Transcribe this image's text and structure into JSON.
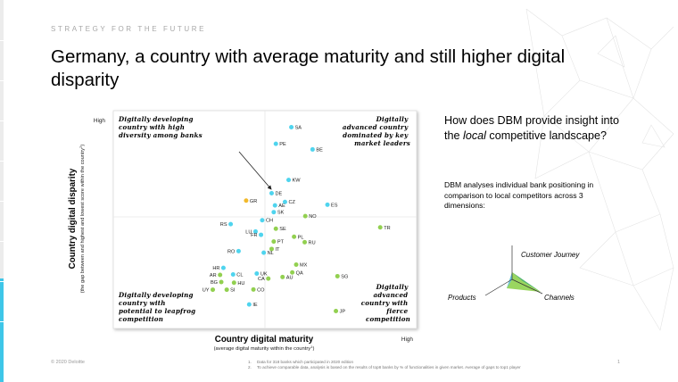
{
  "slide": {
    "eyebrow": "STRATEGY FOR THE FUTURE",
    "title": "Germany, a country with average maturity and still higher digital disparity",
    "copyright": "© 2020 Deloitte",
    "page_number": "1",
    "footnotes": [
      {
        "num": "1.",
        "text": "Data for 318 banks which participated in 2020 edition"
      },
      {
        "num": "2.",
        "text": "To achieve comparable data, analysis is based on the results of top8 banks by % of functionalities in given market. Average of gaps to top1 player"
      }
    ],
    "colors": {
      "accent": "#3ec6e8",
      "cyan_point": "#4fd4ee",
      "green_point": "#92d050",
      "highlight_point": "#f2b92b"
    }
  },
  "side_panel": {
    "question": "How does DBM provide insight into the ",
    "question_local": "local",
    "question_end": " competitive landscape?",
    "answer": "DBM analyses individual bank positioning in comparison to local competitors across 3 dimensions:",
    "diagram_labels": {
      "customer_journey": "Customer Journey",
      "products": "Products",
      "channels": "Channels"
    }
  },
  "chart_data": {
    "type": "scatter",
    "xlabel": "Country digital maturity",
    "xlabel_sub": "(average  digital maturity within the country",
    "xlabel_sup": "1",
    "xlabel_end": ")",
    "ylabel": "Country digital disparity",
    "ylabel_sub": "(the gap between and highest and lowest score within the country",
    "ylabel_sup": "2",
    "ylabel_end": ")",
    "x_high_label": "High",
    "y_high_label": "High",
    "xlim": [
      0,
      100
    ],
    "ylim": [
      0,
      100
    ],
    "quadrants": {
      "top_left": [
        "Digitally developing",
        "country with high",
        "diversity among banks"
      ],
      "top_right": [
        "Digitally",
        "advanced country",
        "dominated by key",
        "market leaders"
      ],
      "bottom_left": [
        "Digitally developing",
        "country with",
        "potential to leapfrog",
        "competition"
      ],
      "bottom_right": [
        "Digitally",
        "advanced",
        "country with",
        "fierce",
        "competition"
      ]
    },
    "points": [
      {
        "label": "SA",
        "x": 58.7,
        "y": 92.4,
        "group": "cyan"
      },
      {
        "label": "PE",
        "x": 53.6,
        "y": 84.8,
        "group": "cyan"
      },
      {
        "label": "BE",
        "x": 65.7,
        "y": 82.2,
        "group": "cyan"
      },
      {
        "label": "KW",
        "x": 57.8,
        "y": 68.2,
        "group": "cyan"
      },
      {
        "label": "DE",
        "x": 52.2,
        "y": 62.1,
        "group": "cyan"
      },
      {
        "label": "GR",
        "x": 43.8,
        "y": 58.7,
        "group": "yellow"
      },
      {
        "label": "CZ",
        "x": 56.6,
        "y": 58.1,
        "group": "cyan"
      },
      {
        "label": "AE",
        "x": 53.3,
        "y": 56.5,
        "group": "cyan"
      },
      {
        "label": "ES",
        "x": 70.6,
        "y": 56.8,
        "group": "cyan"
      },
      {
        "label": "SK",
        "x": 52.9,
        "y": 53.4,
        "group": "cyan"
      },
      {
        "label": "NO",
        "x": 63.3,
        "y": 51.6,
        "group": "green"
      },
      {
        "label": "CH",
        "x": 49.1,
        "y": 49.7,
        "group": "cyan"
      },
      {
        "label": "RS",
        "x": 38.7,
        "y": 47.9,
        "group": "cyan"
      },
      {
        "label": "TR",
        "x": 88.0,
        "y": 46.4,
        "group": "green"
      },
      {
        "label": "LU",
        "x": 46.9,
        "y": 44.5,
        "group": "cyan"
      },
      {
        "label": "SE",
        "x": 53.6,
        "y": 45.8,
        "group": "green"
      },
      {
        "label": "FR",
        "x": 48.7,
        "y": 43.0,
        "group": "cyan"
      },
      {
        "label": "PL",
        "x": 59.6,
        "y": 42.1,
        "group": "green"
      },
      {
        "label": "PT",
        "x": 52.9,
        "y": 39.9,
        "group": "green"
      },
      {
        "label": "RU",
        "x": 63.1,
        "y": 39.6,
        "group": "green"
      },
      {
        "label": "IT",
        "x": 52.2,
        "y": 36.5,
        "group": "green"
      },
      {
        "label": "RO",
        "x": 41.3,
        "y": 35.5,
        "group": "cyan"
      },
      {
        "label": "NL",
        "x": 49.6,
        "y": 34.8,
        "group": "cyan"
      },
      {
        "label": "HR",
        "x": 36.3,
        "y": 27.8,
        "group": "cyan"
      },
      {
        "label": "MX",
        "x": 60.3,
        "y": 29.3,
        "group": "green"
      },
      {
        "label": "AR",
        "x": 35.2,
        "y": 24.6,
        "group": "green"
      },
      {
        "label": "CL",
        "x": 39.5,
        "y": 24.8,
        "group": "cyan"
      },
      {
        "label": "UK",
        "x": 47.3,
        "y": 25.2,
        "group": "cyan"
      },
      {
        "label": "QA",
        "x": 59.0,
        "y": 25.7,
        "group": "green"
      },
      {
        "label": "SG",
        "x": 73.9,
        "y": 24.0,
        "group": "green"
      },
      {
        "label": "AU",
        "x": 55.8,
        "y": 23.6,
        "group": "green"
      },
      {
        "label": "CA",
        "x": 51.1,
        "y": 22.9,
        "group": "green"
      },
      {
        "label": "BG",
        "x": 35.6,
        "y": 21.3,
        "group": "green"
      },
      {
        "label": "HU",
        "x": 39.8,
        "y": 21.0,
        "group": "green"
      },
      {
        "label": "UY",
        "x": 32.8,
        "y": 17.8,
        "group": "green"
      },
      {
        "label": "SI",
        "x": 37.4,
        "y": 17.8,
        "group": "green"
      },
      {
        "label": "CO",
        "x": 46.2,
        "y": 17.9,
        "group": "green"
      },
      {
        "label": "IE",
        "x": 44.8,
        "y": 11.0,
        "group": "cyan"
      },
      {
        "label": "JP",
        "x": 73.4,
        "y": 8.0,
        "group": "green"
      }
    ]
  }
}
